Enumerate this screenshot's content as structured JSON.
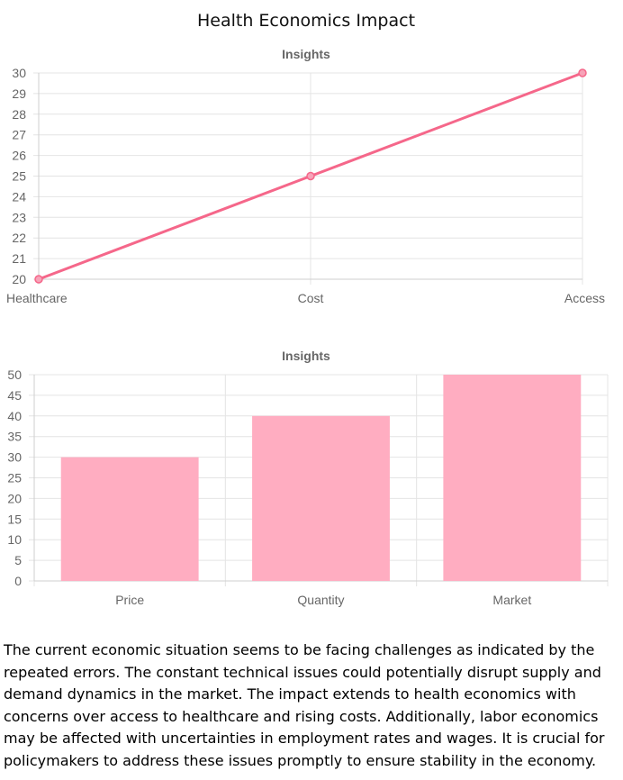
{
  "page": {
    "title": "Health Economics Impact"
  },
  "chart_data": [
    {
      "type": "line",
      "title": "Insights",
      "categories": [
        "Healthcare",
        "Cost",
        "Access"
      ],
      "series": [
        {
          "values": [
            20,
            25,
            30
          ],
          "color": "#f5678a"
        }
      ],
      "ylim": [
        20,
        30
      ],
      "ytick_step": 1,
      "grid": true,
      "legend": "none"
    },
    {
      "type": "bar",
      "title": "Insights",
      "categories": [
        "Price",
        "Quantity",
        "Market"
      ],
      "series": [
        {
          "values": [
            30,
            40,
            50
          ],
          "color": "#ffadc1"
        }
      ],
      "ylim": [
        0,
        50
      ],
      "ytick_step": 5,
      "grid": true,
      "legend": "none"
    }
  ],
  "summary": {
    "text": "The current economic situation seems to be facing challenges as indicated by the repeated errors. The constant technical issues could potentially disrupt supply and demand dynamics in the market. The impact extends to health economics with concerns over access to healthcare and rising costs. Additionally, labor economics may be affected with uncertainties in employment rates and wages. It is crucial for policymakers to address these issues promptly to ensure stability in the economy."
  }
}
